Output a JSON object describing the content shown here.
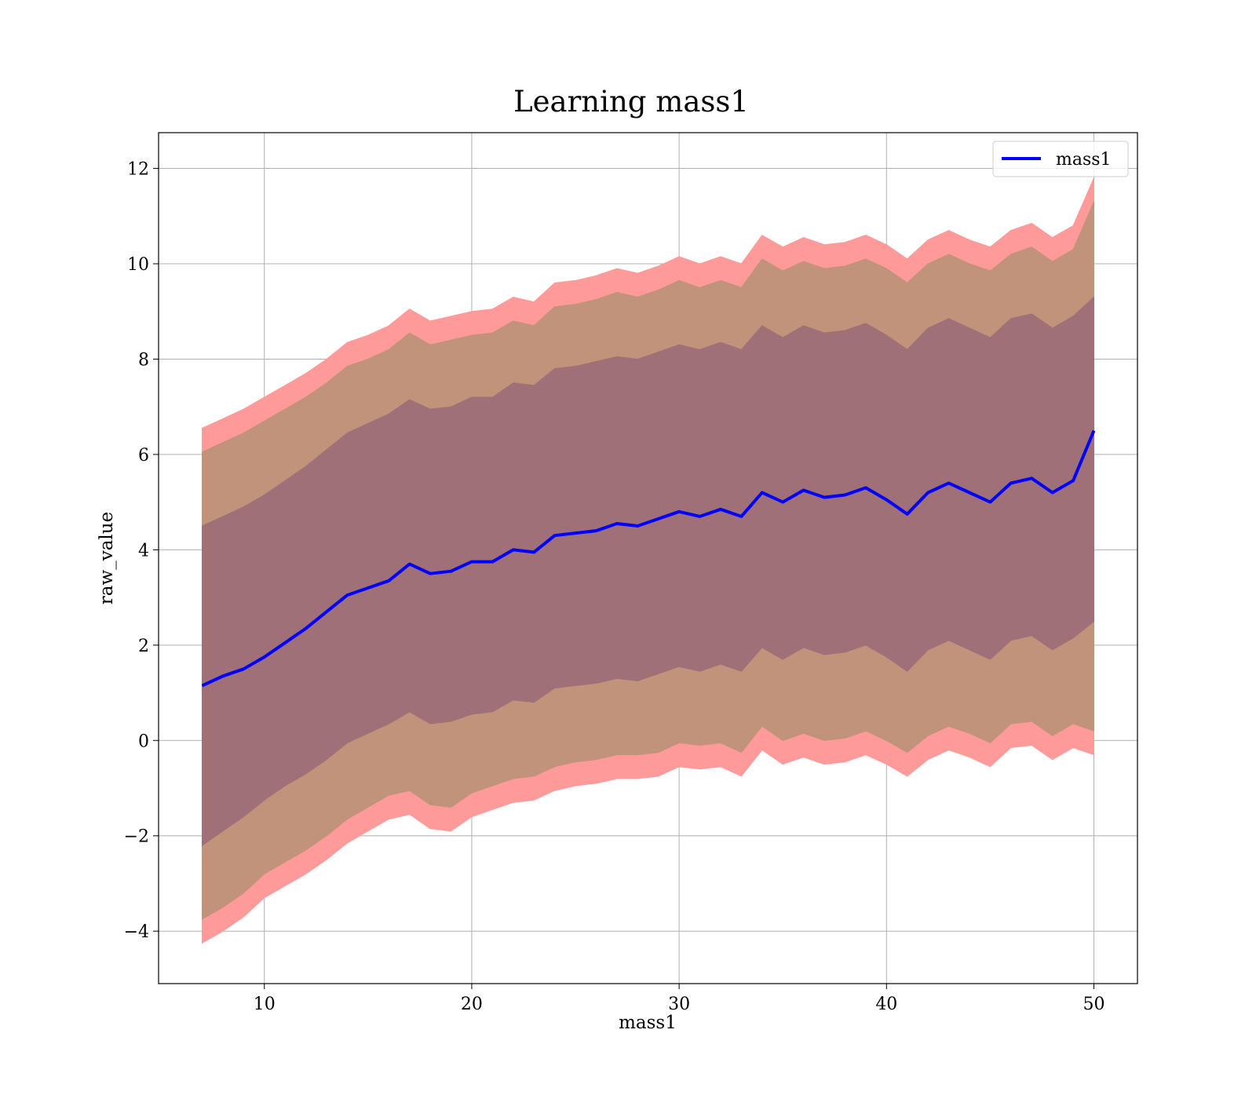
{
  "chart_data": {
    "type": "line",
    "title": "Learning mass1",
    "xlabel": "mass1",
    "ylabel": "raw_value",
    "xlim": [
      4.9,
      52.1
    ],
    "ylim": [
      -5.1,
      12.75
    ],
    "xticks": [
      10,
      20,
      30,
      40,
      50
    ],
    "yticks": [
      -4,
      -2,
      0,
      2,
      4,
      6,
      8,
      10,
      12
    ],
    "grid": true,
    "legend_position": "top-right",
    "colors": {
      "line": "#0000ff",
      "band_outer": "#ff9a9a",
      "band_middle": "#c0937a",
      "band_inner": "#a07078",
      "grid": "#b0b0b0"
    },
    "series": [
      {
        "name": "mass1",
        "x": [
          7,
          8,
          9,
          10,
          11,
          12,
          13,
          14,
          15,
          16,
          17,
          18,
          19,
          20,
          21,
          22,
          23,
          24,
          25,
          26,
          27,
          28,
          29,
          30,
          31,
          32,
          33,
          34,
          35,
          36,
          37,
          38,
          39,
          40,
          41,
          42,
          43,
          44,
          45,
          46,
          47,
          48,
          49,
          50
        ],
        "y": [
          1.15,
          1.35,
          1.5,
          1.75,
          2.05,
          2.35,
          2.7,
          3.05,
          3.2,
          3.35,
          3.7,
          3.5,
          3.55,
          3.75,
          3.75,
          4.0,
          3.95,
          4.3,
          4.35,
          4.4,
          4.55,
          4.5,
          4.65,
          4.8,
          4.7,
          4.85,
          4.7,
          5.2,
          5.0,
          5.25,
          5.1,
          5.15,
          5.3,
          5.05,
          4.75,
          5.2,
          5.4,
          5.2,
          5.0,
          5.4,
          5.5,
          5.2,
          5.45,
          6.5
        ]
      }
    ],
    "bands": [
      {
        "level": "outer",
        "lower": [
          -4.25,
          -4.0,
          -3.7,
          -3.3,
          -3.05,
          -2.8,
          -2.5,
          -2.15,
          -1.9,
          -1.65,
          -1.55,
          -1.85,
          -1.9,
          -1.6,
          -1.45,
          -1.3,
          -1.25,
          -1.05,
          -0.95,
          -0.9,
          -0.8,
          -0.8,
          -0.75,
          -0.55,
          -0.6,
          -0.55,
          -0.75,
          -0.2,
          -0.5,
          -0.35,
          -0.5,
          -0.45,
          -0.3,
          -0.5,
          -0.75,
          -0.4,
          -0.2,
          -0.35,
          -0.55,
          -0.15,
          -0.1,
          -0.4,
          -0.15,
          -0.3
        ],
        "upper": [
          6.55,
          6.75,
          6.95,
          7.2,
          7.45,
          7.7,
          8.0,
          8.35,
          8.5,
          8.7,
          9.05,
          8.8,
          8.9,
          9.0,
          9.05,
          9.3,
          9.2,
          9.6,
          9.65,
          9.75,
          9.9,
          9.8,
          9.95,
          10.15,
          10.0,
          10.15,
          10.0,
          10.6,
          10.35,
          10.55,
          10.4,
          10.45,
          10.6,
          10.4,
          10.1,
          10.5,
          10.7,
          10.5,
          10.35,
          10.7,
          10.85,
          10.55,
          10.8,
          11.8
        ]
      },
      {
        "level": "middle",
        "lower": [
          -3.75,
          -3.5,
          -3.2,
          -2.8,
          -2.55,
          -2.3,
          -2.0,
          -1.65,
          -1.4,
          -1.15,
          -1.05,
          -1.35,
          -1.4,
          -1.1,
          -0.95,
          -0.8,
          -0.75,
          -0.55,
          -0.45,
          -0.4,
          -0.3,
          -0.3,
          -0.25,
          -0.05,
          -0.1,
          -0.05,
          -0.25,
          0.3,
          0.0,
          0.15,
          0.0,
          0.05,
          0.2,
          0.0,
          -0.25,
          0.1,
          0.3,
          0.15,
          -0.05,
          0.35,
          0.4,
          0.1,
          0.35,
          0.2
        ],
        "upper": [
          6.05,
          6.25,
          6.45,
          6.7,
          6.95,
          7.2,
          7.5,
          7.85,
          8.0,
          8.2,
          8.55,
          8.3,
          8.4,
          8.5,
          8.55,
          8.8,
          8.7,
          9.1,
          9.15,
          9.25,
          9.4,
          9.3,
          9.45,
          9.65,
          9.5,
          9.65,
          9.5,
          10.1,
          9.85,
          10.05,
          9.9,
          9.95,
          10.1,
          9.9,
          9.6,
          10.0,
          10.2,
          10.0,
          9.85,
          10.2,
          10.35,
          10.05,
          10.3,
          11.3
        ]
      },
      {
        "level": "inner",
        "lower": [
          -2.2,
          -1.9,
          -1.6,
          -1.25,
          -0.95,
          -0.7,
          -0.4,
          -0.05,
          0.15,
          0.35,
          0.6,
          0.35,
          0.4,
          0.55,
          0.6,
          0.85,
          0.8,
          1.1,
          1.15,
          1.2,
          1.3,
          1.25,
          1.4,
          1.55,
          1.45,
          1.6,
          1.45,
          1.95,
          1.7,
          1.95,
          1.8,
          1.85,
          2.0,
          1.75,
          1.45,
          1.9,
          2.1,
          1.9,
          1.7,
          2.1,
          2.2,
          1.9,
          2.15,
          2.5
        ],
        "upper": [
          4.5,
          4.7,
          4.9,
          5.15,
          5.45,
          5.75,
          6.1,
          6.45,
          6.65,
          6.85,
          7.15,
          6.95,
          7.0,
          7.2,
          7.2,
          7.5,
          7.45,
          7.8,
          7.85,
          7.95,
          8.05,
          8.0,
          8.15,
          8.3,
          8.2,
          8.35,
          8.2,
          8.7,
          8.45,
          8.7,
          8.55,
          8.6,
          8.75,
          8.5,
          8.2,
          8.65,
          8.85,
          8.65,
          8.45,
          8.85,
          8.95,
          8.65,
          8.9,
          9.3
        ]
      }
    ]
  }
}
